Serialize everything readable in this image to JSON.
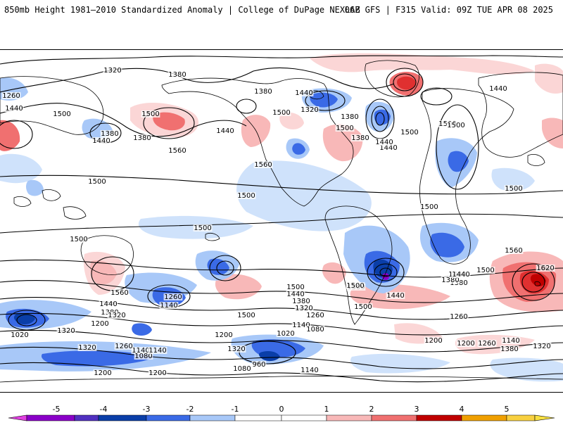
{
  "header": {
    "title": "850mb Height 1981–2010 Standardized Anomaly | College of DuPage NEXLAB",
    "run_info": "06Z GFS | F315 Valid: 09Z TUE APR 08 2025"
  },
  "colors": {
    "neg5": "#e040e0",
    "neg4": "#8a00c8",
    "neg3": "#0a3ea8",
    "neg2": "#3a6ae6",
    "neg1": "#a8c8f8",
    "neg05": "#cfe2fb",
    "zero": "#ffffff",
    "pos05": "#fbd6d6",
    "pos1": "#f8b8b8",
    "pos2": "#f07070",
    "pos3": "#e03030",
    "pos4": "#c00000",
    "pos5": "#f0a000",
    "contour": "#000000",
    "coast": "#000000"
  },
  "colorbar": {
    "ticks": [
      "-5",
      "-4",
      "-3",
      "-2",
      "-1",
      "0",
      "1",
      "2",
      "3",
      "4",
      "5"
    ]
  },
  "contour_labels": [
    {
      "text": "1320"
    },
    {
      "text": "1380"
    },
    {
      "text": "1260"
    },
    {
      "text": "1440"
    },
    {
      "text": "1500"
    },
    {
      "text": "1380"
    },
    {
      "text": "1440"
    },
    {
      "text": "1380"
    },
    {
      "text": "1500"
    },
    {
      "text": "1560"
    },
    {
      "text": "1440"
    },
    {
      "text": "1380"
    },
    {
      "text": "1500"
    },
    {
      "text": "1560"
    },
    {
      "text": "1440"
    },
    {
      "text": "1320"
    },
    {
      "text": "1380"
    },
    {
      "text": "1440"
    },
    {
      "text": "1500"
    },
    {
      "text": "1500"
    },
    {
      "text": "1440"
    },
    {
      "text": "1380"
    },
    {
      "text": "1500"
    },
    {
      "text": "1440"
    },
    {
      "text": "1500"
    },
    {
      "text": "1500"
    },
    {
      "text": "1500"
    },
    {
      "text": "1500"
    },
    {
      "text": "1500"
    },
    {
      "text": "1500"
    },
    {
      "text": "1500"
    },
    {
      "text": "1560"
    },
    {
      "text": "1620"
    },
    {
      "text": "1440"
    },
    {
      "text": "1380"
    },
    {
      "text": "1500"
    },
    {
      "text": "1500"
    },
    {
      "text": "1560"
    },
    {
      "text": "1440"
    },
    {
      "text": "1380"
    },
    {
      "text": "1320"
    },
    {
      "text": "1260"
    },
    {
      "text": "1140"
    },
    {
      "text": "1320"
    },
    {
      "text": "1140"
    },
    {
      "text": "1020"
    },
    {
      "text": "1200"
    },
    {
      "text": "1260"
    },
    {
      "text": "1320"
    },
    {
      "text": "1080"
    },
    {
      "text": "1140"
    },
    {
      "text": "1200"
    },
    {
      "text": "1500"
    },
    {
      "text": "1440"
    },
    {
      "text": "1380"
    },
    {
      "text": "1320"
    },
    {
      "text": "1260"
    },
    {
      "text": "1140"
    },
    {
      "text": "1080"
    },
    {
      "text": "1020"
    },
    {
      "text": "960"
    },
    {
      "text": "1080"
    },
    {
      "text": "1140"
    },
    {
      "text": "1200"
    },
    {
      "text": "1500"
    },
    {
      "text": "1440"
    },
    {
      "text": "1500"
    },
    {
      "text": "1260"
    },
    {
      "text": "1200"
    },
    {
      "text": "1200"
    },
    {
      "text": "1260"
    },
    {
      "text": "1140"
    },
    {
      "text": "1380"
    },
    {
      "text": "1320"
    },
    {
      "text": "1320"
    },
    {
      "text": "1380"
    },
    {
      "text": "1440"
    },
    {
      "text": "1500"
    },
    {
      "text": "1200"
    }
  ]
}
